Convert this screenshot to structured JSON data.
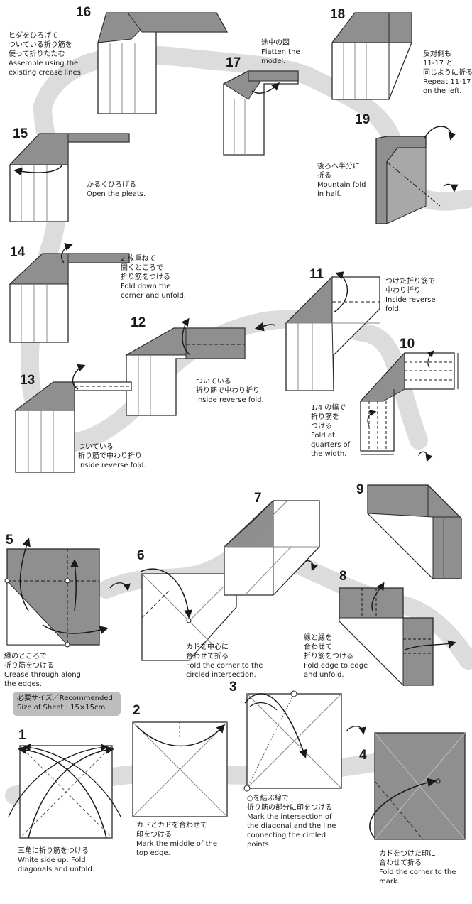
{
  "setup": {
    "sheet_label_jp": "必要サイズ／Recommended",
    "sheet_label_en": "Size of Sheet : 15×15cm"
  },
  "steps": [
    {
      "n": "1",
      "lines": [
        "三角に折り筋をつける",
        "White side up. Fold",
        "diagonals and unfold."
      ]
    },
    {
      "n": "2",
      "lines": [
        "カドとカドを合わせて",
        "印をつける",
        "Mark the middle of the",
        "top edge."
      ]
    },
    {
      "n": "3",
      "lines": [
        "○を結ぶ線で",
        "折り筋の部分に印をつける",
        "Mark the intersection of",
        "the diagonal and the line",
        "connecting the circled",
        "points."
      ]
    },
    {
      "n": "4",
      "lines": [
        "カドをつけた印に",
        "合わせて折る",
        "Fold the corner to the",
        "mark."
      ]
    },
    {
      "n": "5",
      "lines": [
        "縁のところで",
        "折り筋をつける",
        "Crease through along",
        "the edges."
      ]
    },
    {
      "n": "6",
      "lines": [
        "カドを中心に",
        "合わせて折る",
        "Fold the corner to the",
        "circled intersection."
      ]
    },
    {
      "n": "7",
      "lines": []
    },
    {
      "n": "8",
      "lines": [
        "縁と縁を",
        "合わせて",
        "折り筋をつける",
        "Fold edge to edge",
        "and unfold."
      ]
    },
    {
      "n": "9",
      "lines": []
    },
    {
      "n": "10",
      "lines": [
        "1/4 の幅で",
        "折り筋を",
        "つける",
        "Fold at",
        "quarters of",
        "the width."
      ]
    },
    {
      "n": "11",
      "lines": [
        "つけた折り筋で",
        "中わり折り",
        "Inside reverse",
        "fold."
      ]
    },
    {
      "n": "12",
      "lines": [
        "ついている",
        "折り筋で中わり折り",
        "Inside reverse fold."
      ]
    },
    {
      "n": "13",
      "lines": [
        "ついている",
        "折り筋で中わり折り",
        "Inside reverse fold."
      ]
    },
    {
      "n": "14",
      "lines": [
        "2 枚重ねて",
        "開くところで",
        "折り筋をつける",
        "Fold down the",
        "corner and unfold."
      ]
    },
    {
      "n": "15",
      "lines": [
        "かるくひろげる",
        "Open the pleats."
      ]
    },
    {
      "n": "16",
      "lines": [
        "ヒダをひろげて",
        "ついている折り筋を",
        "使って折りたたむ",
        "Assemble using the",
        "existing crease lines."
      ]
    },
    {
      "n": "17",
      "lines": [
        "途中の図",
        "Flatten the",
        "model."
      ]
    },
    {
      "n": "18",
      "lines": [
        "反対側も",
        "11-17 と",
        "同じように折る",
        "Repeat 11-17",
        "on the left."
      ]
    },
    {
      "n": "19",
      "lines": [
        "後ろへ半分に",
        "折る",
        "Mountain fold",
        "in half."
      ]
    }
  ],
  "colors": {
    "paper_white": "#ffffff",
    "paper_colored": "#8f8f8f",
    "paper_colored_dark": "#7a7a7a",
    "path_band": "#dcdcdc",
    "line": "#2a2a2a",
    "badge": "#bdbdbd"
  }
}
